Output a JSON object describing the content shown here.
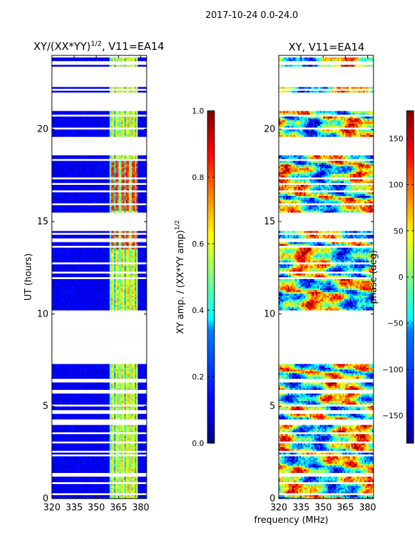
{
  "figure": {
    "suptitle": "2017-10-24 0.0-24.0",
    "common_xlabel": "frequency (MHz)"
  },
  "chart_data": [
    {
      "type": "heatmap",
      "title_main": "XY/(XX*YY)",
      "title_exp": "1/2",
      "title_rest": ", V11=EA14",
      "ylabel": "UT (hours)",
      "xlim": [
        320,
        384
      ],
      "ylim": [
        0,
        24
      ],
      "xticks": [
        "320",
        "335",
        "350",
        "365",
        "380"
      ],
      "yticks": [
        "0",
        "5",
        "10",
        "15",
        "20"
      ],
      "colorbar": {
        "label_main": "XY amp. / (XX*YY amp)",
        "label_exp": "1/2",
        "ticks": [
          "0.0",
          "0.2",
          "0.4",
          "0.6",
          "0.8",
          "1.0"
        ],
        "vmin": 0,
        "vmax": 1
      },
      "data_gaps_hours": [
        [
          7.4,
          10.2
        ],
        [
          14.6,
          15.5
        ],
        [
          18.6,
          19.6
        ],
        [
          21.0,
          21.8
        ],
        [
          22.3,
          23.4
        ]
      ],
      "high_amplitude_band_mhz": [
        359,
        378
      ],
      "peak_regions": [
        {
          "hours": [
            15.6,
            18.3
          ],
          "mhz": [
            359,
            378
          ],
          "value": 0.9
        },
        {
          "hours": [
            13.5,
            14.5
          ],
          "mhz": [
            359,
            378
          ],
          "value": 0.9
        }
      ]
    },
    {
      "type": "heatmap",
      "title": "XY, V11=EA14",
      "xlim": [
        320,
        384
      ],
      "ylim": [
        0,
        24
      ],
      "xticks": [
        "320",
        "335",
        "350",
        "365",
        "380"
      ],
      "yticks": [
        "0",
        "5",
        "10",
        "15",
        "20"
      ],
      "colorbar": {
        "label": "phase (deg)",
        "ticks": [
          "150",
          "100",
          "50",
          "0",
          "−50",
          "−100",
          "−150"
        ],
        "vmin": -180,
        "vmax": 180
      },
      "data_gaps_hours": [
        [
          7.4,
          10.2
        ],
        [
          14.6,
          15.5
        ],
        [
          18.6,
          19.6
        ],
        [
          21.0,
          21.8
        ],
        [
          22.3,
          23.4
        ]
      ]
    }
  ]
}
